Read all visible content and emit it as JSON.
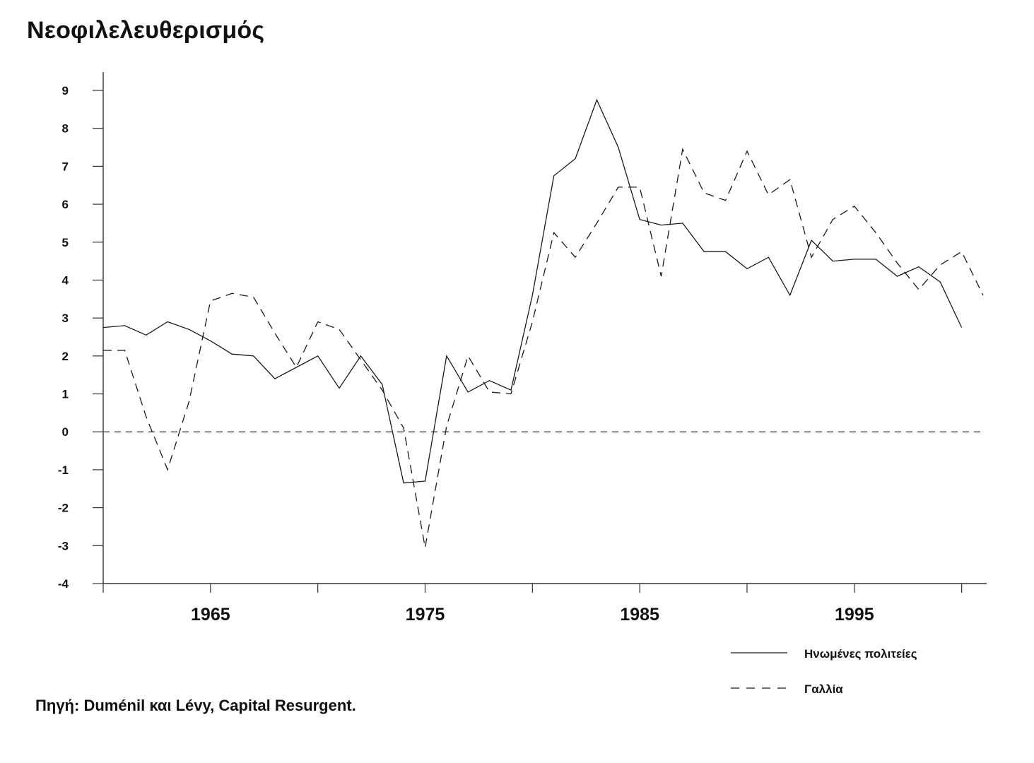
{
  "title": "Νεοφιλελευθερισμός",
  "source": "Πηγή: Duménil και Lévy, Capital Resurgent.",
  "chart_data": {
    "type": "line",
    "title": "Νεοφιλελευθερισμός",
    "xlabel": "",
    "ylabel": "",
    "xlim": [
      1960,
      2001
    ],
    "ylim": [
      -4,
      9
    ],
    "y_ticks": [
      "9",
      "8",
      "7",
      "6",
      "5",
      "4",
      "3",
      "2",
      "1",
      "0",
      "-1",
      "-2",
      "-3",
      "-4"
    ],
    "x_tick_labels": [
      "1965",
      "1975",
      "1985",
      "1995"
    ],
    "x_tick_years": [
      1960,
      1965,
      1970,
      1975,
      1980,
      1985,
      1990,
      1995,
      2000
    ],
    "grid": false,
    "zero_line": "dashed",
    "legend_position": "bottom-right",
    "x": [
      1960,
      1961,
      1962,
      1963,
      1964,
      1965,
      1966,
      1967,
      1968,
      1969,
      1970,
      1971,
      1972,
      1973,
      1974,
      1975,
      1976,
      1977,
      1978,
      1979,
      1980,
      1981,
      1982,
      1983,
      1984,
      1985,
      1986,
      1987,
      1988,
      1989,
      1990,
      1991,
      1992,
      1993,
      1994,
      1995,
      1996,
      1997,
      1998,
      1999,
      2000,
      2001
    ],
    "series": [
      {
        "name": "Ηνωμένες πολιτείες",
        "style": "solid",
        "color": "#1a1a1a",
        "values": [
          2.75,
          2.8,
          2.55,
          2.9,
          2.7,
          2.4,
          2.05,
          2.0,
          1.4,
          1.7,
          2.0,
          1.15,
          2.0,
          1.25,
          -1.35,
          -1.3,
          2.0,
          1.05,
          1.35,
          1.1,
          3.6,
          6.75,
          7.2,
          8.75,
          7.5,
          5.6,
          5.45,
          5.5,
          4.75,
          4.75,
          4.3,
          4.6,
          3.6,
          5.05,
          4.5,
          4.55,
          4.55,
          4.1,
          4.35,
          3.95,
          2.75,
          null
        ]
      },
      {
        "name": "Γαλλία",
        "style": "dashed",
        "color": "#1a1a1a",
        "values": [
          2.15,
          2.15,
          0.4,
          -1.0,
          0.8,
          3.45,
          3.65,
          3.55,
          2.6,
          1.7,
          2.9,
          2.7,
          1.9,
          1.1,
          0.1,
          -3.05,
          0.15,
          2.0,
          1.05,
          1.0,
          2.9,
          5.25,
          4.6,
          5.5,
          6.45,
          6.45,
          4.1,
          7.45,
          6.3,
          6.1,
          7.4,
          6.25,
          6.65,
          4.6,
          5.6,
          5.95,
          5.25,
          4.45,
          3.75,
          4.4,
          4.75,
          3.6
        ]
      }
    ]
  }
}
